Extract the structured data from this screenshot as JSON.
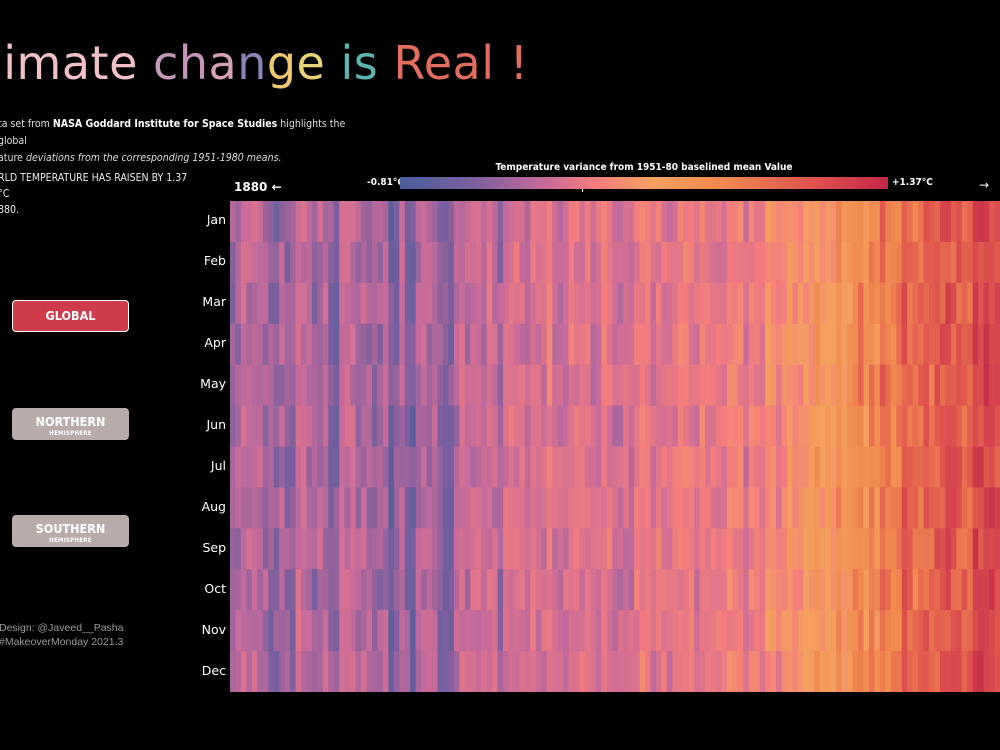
{
  "title": {
    "parts": [
      {
        "text": "limate ",
        "color": "#f1c1c6"
      },
      {
        "text": "c",
        "color": "#c59ab8"
      },
      {
        "text": "h",
        "color": "#c695b9"
      },
      {
        "text": "a",
        "color": "#d5a2b3"
      },
      {
        "text": "n",
        "color": "#8a86b9"
      },
      {
        "text": "g",
        "color": "#f0c870"
      },
      {
        "text": "e",
        "color": "#e9d377"
      },
      {
        "text": " is ",
        "color": "#5bb6b1"
      },
      {
        "text": "Real !",
        "color": "#e36d5e"
      }
    ]
  },
  "intro": {
    "prefix": "ta set from ",
    "source": "NASA Goddard Institute for Space Studies",
    "middle": "  highlights  the global",
    "line2_prefix": "ature ",
    "line2_italic": "deviations from the corresponding 1951-1980 means."
  },
  "stat": {
    "line1": "RLD  TEMPERATURE HAS RAISEN BY  1.37 °C",
    "line2": "880."
  },
  "buttons": {
    "global": {
      "label": "GLOBAL"
    },
    "northern": {
      "label": "NORTHERN",
      "sub": "HEMISPHERE"
    },
    "southern": {
      "label": "SOUTHERN",
      "sub": "HEMISPHERE"
    }
  },
  "credits": {
    "line1": "Design: @Javeed__Pasha",
    "line2": "#MakeoverMonday 2021.3"
  },
  "colors": {
    "background": "#000000",
    "button_active": "#cf3b4b",
    "button_inactive": "#b9aba9"
  },
  "chart_data": {
    "type": "heatmap",
    "legend_title": "Temperature variance from 1951-80 baselined mean Value",
    "legend_min_label": "-0.81°C",
    "legend_max_label": "+1.37°C",
    "value_range": [
      -0.81,
      1.37
    ],
    "x_start_label": "1880 ←",
    "x_end_label": "→",
    "x_start_year": 1880,
    "x_end_year": 2020,
    "months": [
      "Jan",
      "Feb",
      "Mar",
      "Apr",
      "May",
      "Jun",
      "Jul",
      "Aug",
      "Sep",
      "Oct",
      "Nov",
      "Dec"
    ],
    "colorscale": [
      "#4a5e9b",
      "#7b5f9e",
      "#c86b9a",
      "#f37c7e",
      "#f6a060",
      "#f0894f",
      "#e0544f",
      "#c42748"
    ],
    "decade_means": [
      -0.22,
      -0.28,
      -0.3,
      -0.35,
      -0.42,
      -0.37,
      -0.26,
      -0.15,
      -0.03,
      -0.02,
      -0.01,
      0.02,
      0.04,
      0.15,
      0.4,
      0.62,
      0.8,
      0.98,
      1.1
    ]
  }
}
